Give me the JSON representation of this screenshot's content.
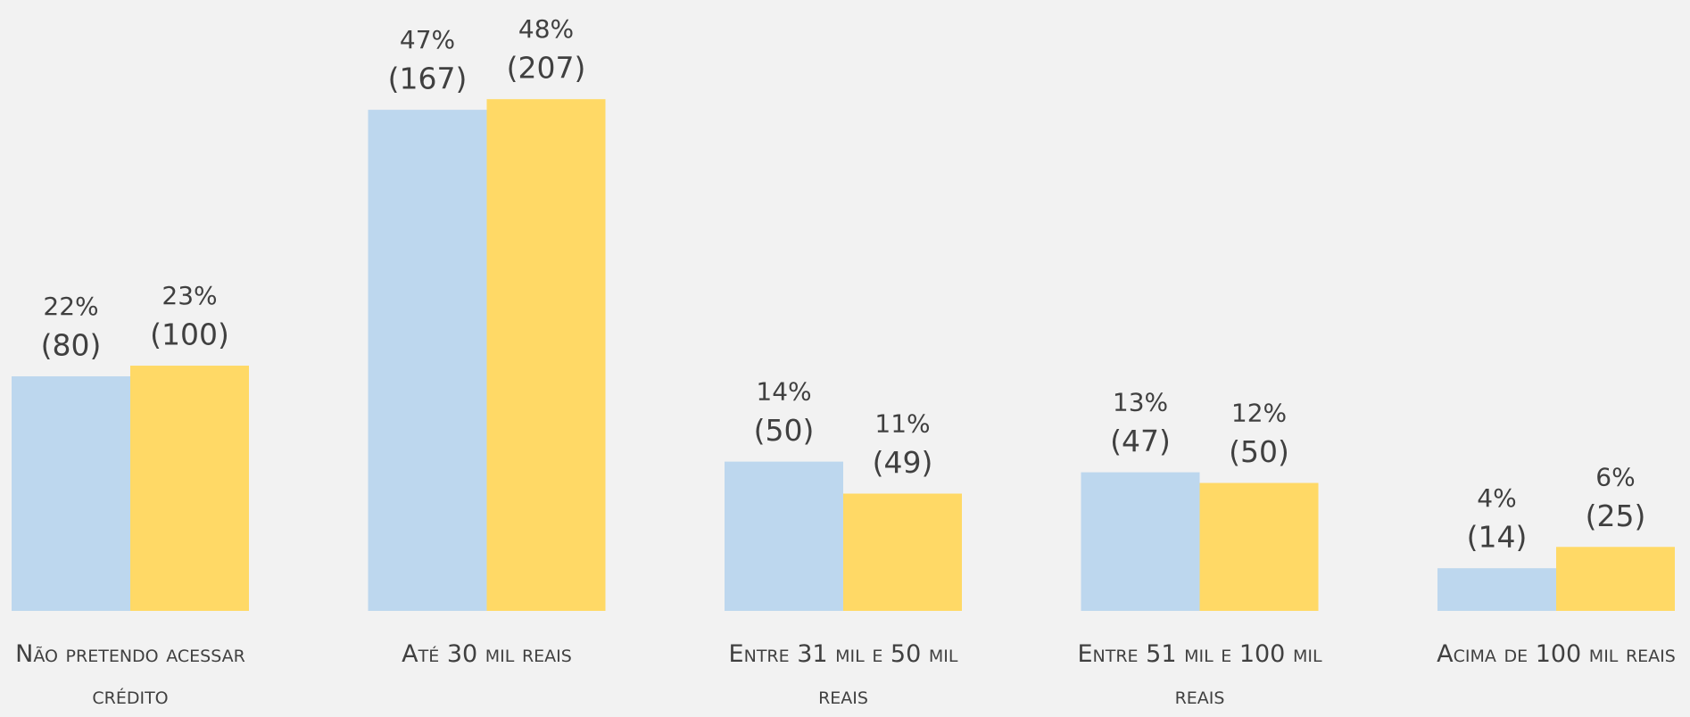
{
  "chart_data": {
    "type": "bar",
    "categories": [
      "Não pretendo acessar crédito",
      "Até 30 mil reais",
      "Entre 31 mil e 50 mil reais",
      "Entre 51 mil e 100 mil reais",
      "Acima de 100 mil reais"
    ],
    "series": [
      {
        "color": "#bdd7ee",
        "values": [
          22,
          47,
          14,
          13,
          4
        ],
        "value_labels": [
          "22%",
          "47%",
          "14%",
          "13%",
          "4%"
        ],
        "count_labels": [
          "(80)",
          "(167)",
          "(50)",
          "(47)",
          "(14)"
        ]
      },
      {
        "color": "#ffd966",
        "values": [
          23,
          48,
          11,
          12,
          6
        ],
        "value_labels": [
          "23%",
          "48%",
          "11%",
          "12%",
          "6%"
        ],
        "count_labels": [
          "(100)",
          "(207)",
          "(49)",
          "(50)",
          "(25)"
        ]
      }
    ],
    "ylim": [
      0,
      57.3
    ]
  }
}
